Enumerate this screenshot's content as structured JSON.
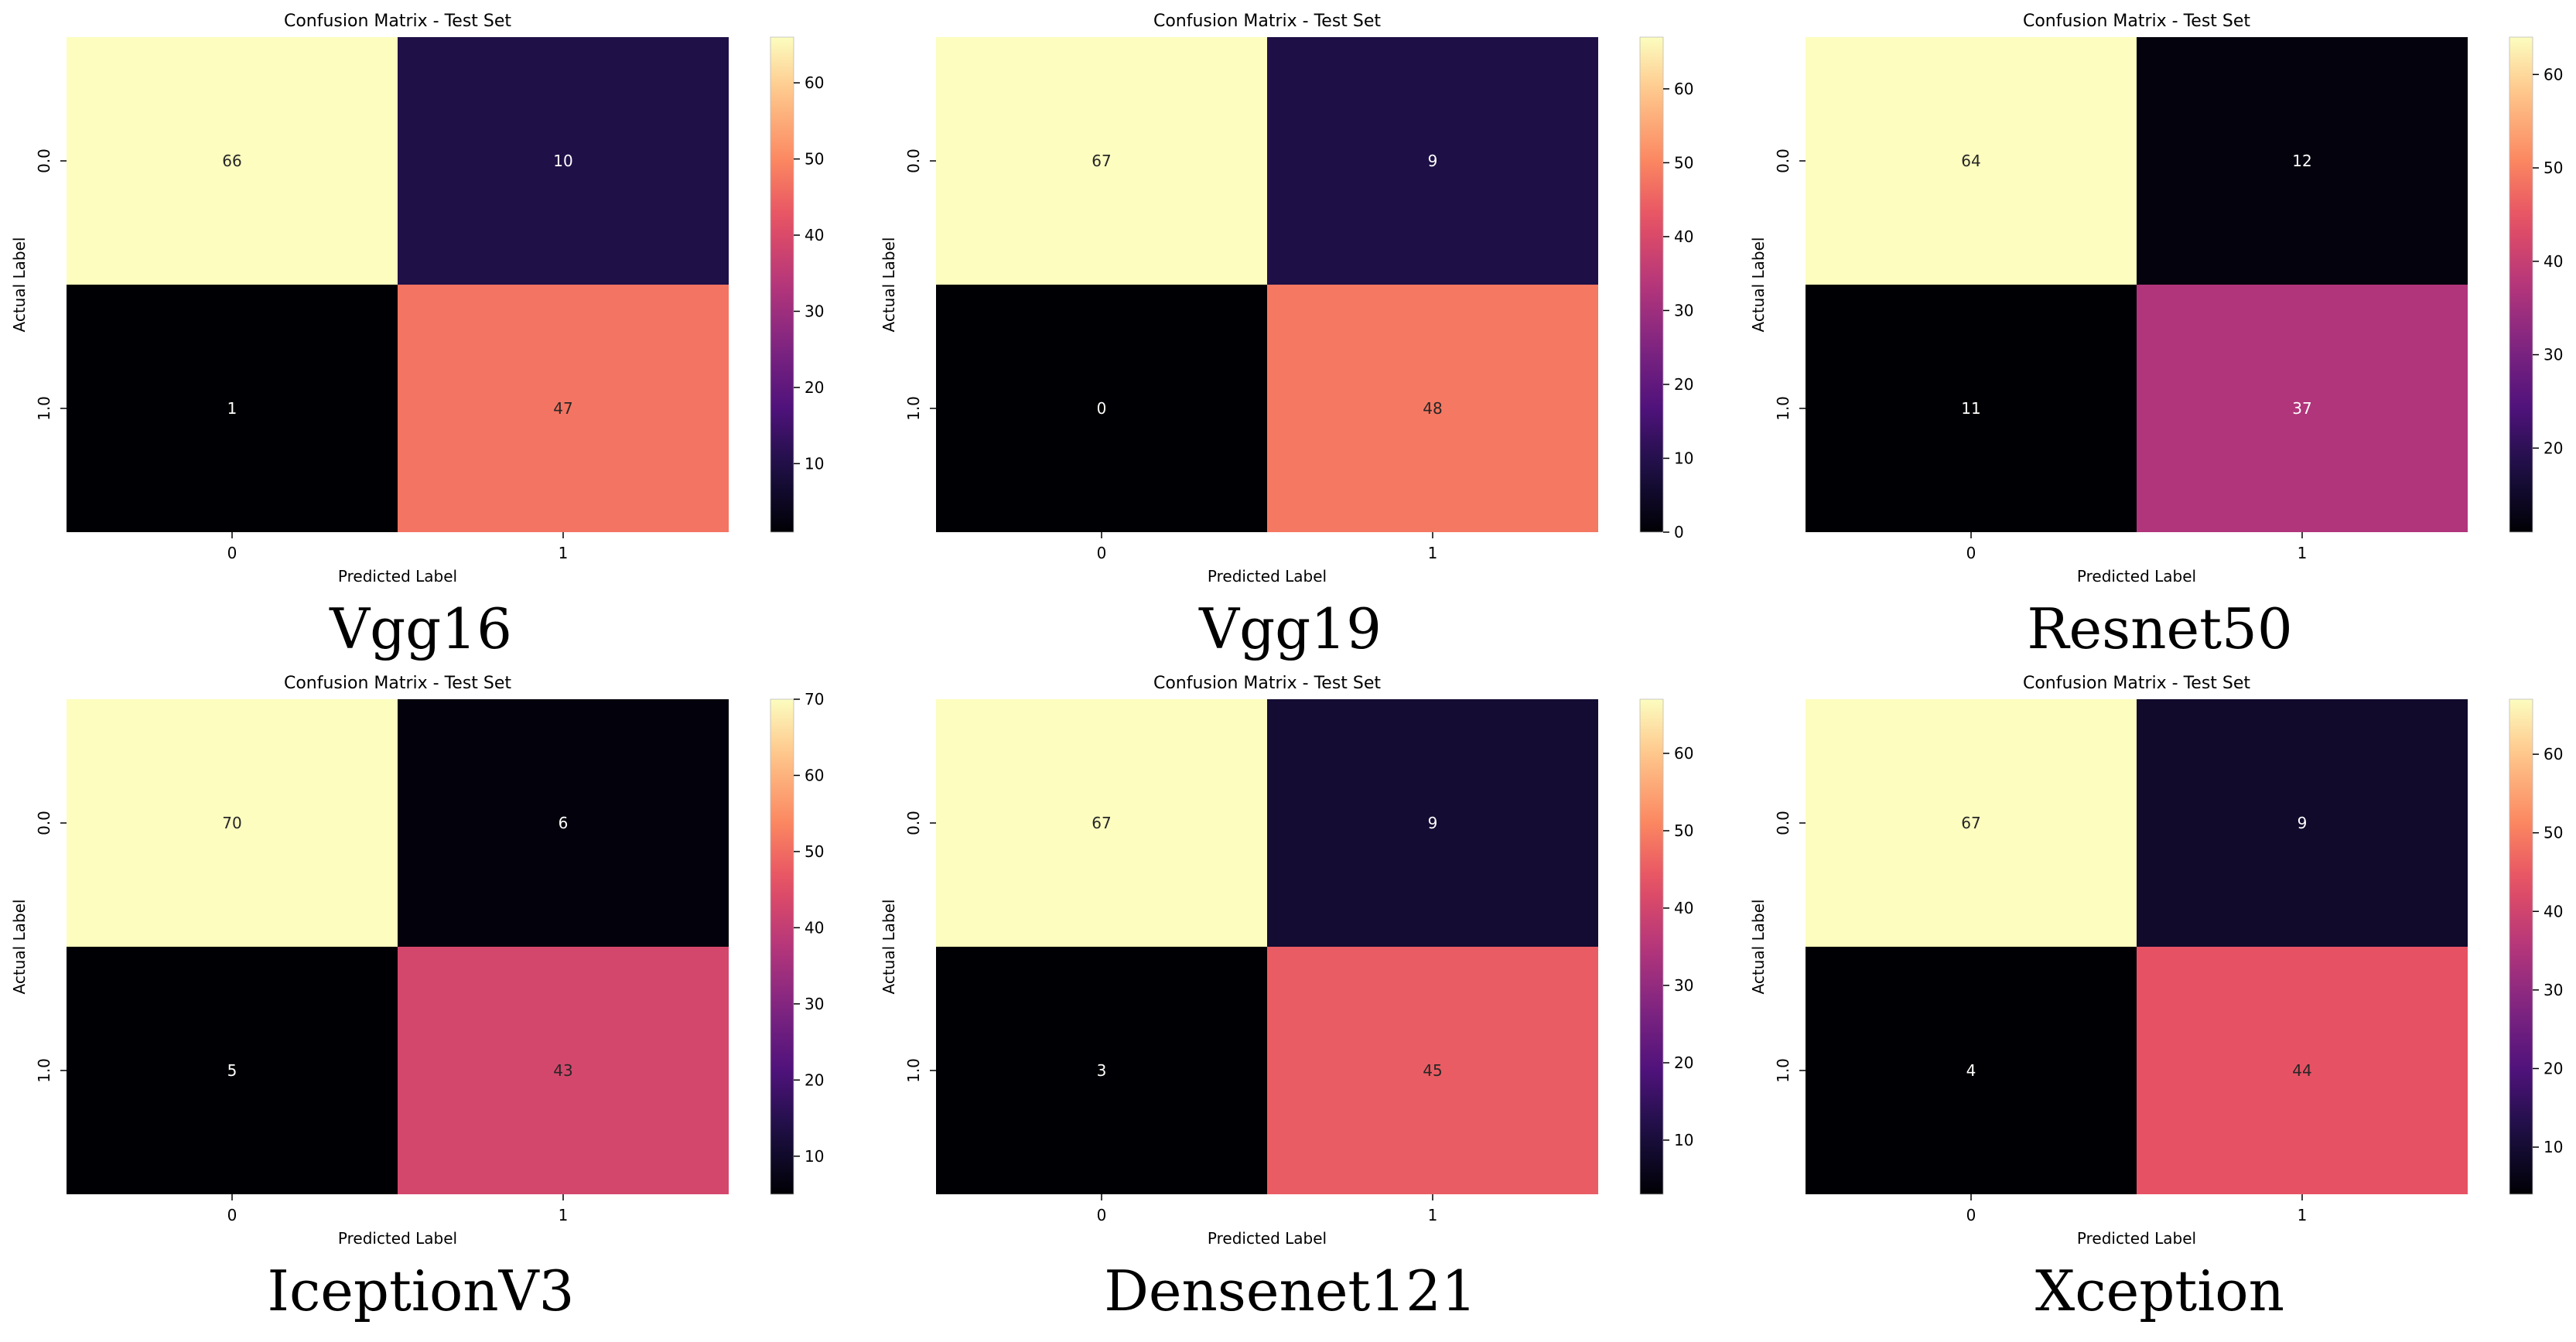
{
  "figure": {
    "panels": [
      {
        "name": "vgg16",
        "model_label": "Vgg16"
      },
      {
        "name": "vgg19",
        "model_label": "Vgg19"
      },
      {
        "name": "resnet50",
        "model_label": "Resnet50"
      },
      {
        "name": "inceptionv3",
        "model_label": "IceptionV3"
      },
      {
        "name": "densenet121",
        "model_label": "Densenet121"
      },
      {
        "name": "xception",
        "model_label": "Xception"
      }
    ]
  },
  "chart_data": [
    {
      "type": "heatmap",
      "title": "Confusion Matrix - Test Set",
      "xlabel": "Predicted Label",
      "ylabel": "Actual Label",
      "x_ticks": [
        "0",
        "1"
      ],
      "y_ticks": [
        "0.0",
        "1.0"
      ],
      "values": [
        [
          66,
          10
        ],
        [
          1,
          47
        ]
      ],
      "colormap": "magma",
      "vmin": 1,
      "vmax": 66,
      "colorbar_ticks": [
        10,
        20,
        30,
        40,
        50,
        60
      ]
    },
    {
      "type": "heatmap",
      "title": "Confusion Matrix - Test Set",
      "xlabel": "Predicted Label",
      "ylabel": "Actual Label",
      "x_ticks": [
        "0",
        "1"
      ],
      "y_ticks": [
        "0.0",
        "1.0"
      ],
      "values": [
        [
          67,
          9
        ],
        [
          0,
          48
        ]
      ],
      "colormap": "magma",
      "vmin": 0,
      "vmax": 67,
      "colorbar_ticks": [
        0,
        10,
        20,
        30,
        40,
        50,
        60
      ]
    },
    {
      "type": "heatmap",
      "title": "Confusion Matrix - Test Set",
      "xlabel": "Predicted Label",
      "ylabel": "Actual Label",
      "x_ticks": [
        "0",
        "1"
      ],
      "y_ticks": [
        "0.0",
        "1.0"
      ],
      "values": [
        [
          64,
          12
        ],
        [
          11,
          37
        ]
      ],
      "colormap": "magma",
      "vmin": 11,
      "vmax": 64,
      "colorbar_ticks": [
        20,
        30,
        40,
        50,
        60
      ]
    },
    {
      "type": "heatmap",
      "title": "Confusion Matrix - Test Set",
      "xlabel": "Predicted Label",
      "ylabel": "Actual Label",
      "x_ticks": [
        "0",
        "1"
      ],
      "y_ticks": [
        "0.0",
        "1.0"
      ],
      "values": [
        [
          70,
          6
        ],
        [
          5,
          43
        ]
      ],
      "colormap": "magma",
      "vmin": 5,
      "vmax": 70,
      "colorbar_ticks": [
        10,
        20,
        30,
        40,
        50,
        60,
        70
      ]
    },
    {
      "type": "heatmap",
      "title": "Confusion Matrix - Test Set",
      "xlabel": "Predicted Label",
      "ylabel": "Actual Label",
      "x_ticks": [
        "0",
        "1"
      ],
      "y_ticks": [
        "0.0",
        "1.0"
      ],
      "values": [
        [
          67,
          9
        ],
        [
          3,
          45
        ]
      ],
      "colormap": "magma",
      "vmin": 3,
      "vmax": 67,
      "colorbar_ticks": [
        10,
        20,
        30,
        40,
        50,
        60
      ]
    },
    {
      "type": "heatmap",
      "title": "Confusion Matrix - Test Set",
      "xlabel": "Predicted Label",
      "ylabel": "Actual Label",
      "x_ticks": [
        "0",
        "1"
      ],
      "y_ticks": [
        "0.0",
        "1.0"
      ],
      "values": [
        [
          67,
          9
        ],
        [
          4,
          44
        ]
      ],
      "colormap": "magma",
      "vmin": 4,
      "vmax": 67,
      "colorbar_ticks": [
        10,
        20,
        30,
        40,
        50,
        60
      ]
    }
  ]
}
